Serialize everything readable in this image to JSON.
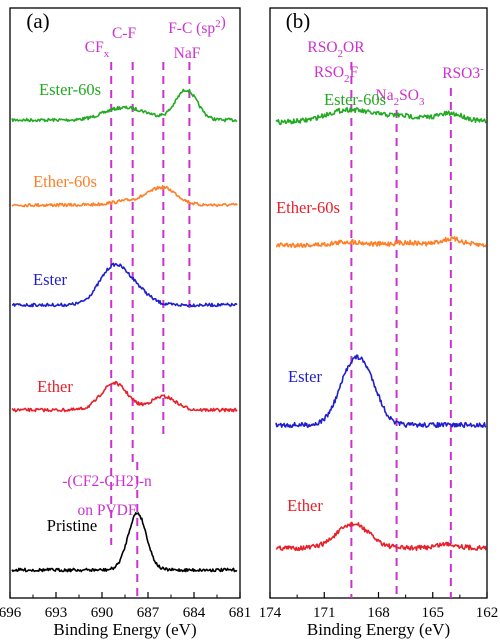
{
  "chart_data": [
    {
      "type": "line",
      "panel_label": "(a)",
      "xlabel": "Binding Energy (eV)",
      "xlim": [
        696,
        681
      ],
      "x_ticks": [
        696,
        693,
        690,
        687,
        684,
        681
      ],
      "reference_lines": [
        {
          "label": "CF",
          "sub": "x",
          "x": 689.4
        },
        {
          "label": "C-F",
          "x": 688.0
        },
        {
          "label": "F-C (sp",
          "sup": "2",
          "tail": ")",
          "x": 686.0
        },
        {
          "label": "NaF",
          "x": 684.3
        },
        {
          "label": "-(CF2-CH2)-n",
          "label2": "on PVDF",
          "x": 687.7
        }
      ],
      "series": [
        {
          "name": "Ester-60s",
          "color": "#22aa22",
          "baseline": 0,
          "peaks": [
            {
              "x": 689.3,
              "amp": 0.2,
              "w": 1.0
            },
            {
              "x": 687.9,
              "amp": 0.3,
              "w": 1.2
            },
            {
              "x": 684.5,
              "amp": 1.0,
              "w": 0.7
            }
          ]
        },
        {
          "name": "Ether-60s",
          "color": "#ff7f27",
          "baseline": 0,
          "peaks": [
            {
              "x": 688.0,
              "amp": 0.15,
              "w": 1.2
            },
            {
              "x": 686.0,
              "amp": 0.55,
              "w": 0.9
            }
          ]
        },
        {
          "name": "Ester",
          "color": "#1f1fcc",
          "baseline": 0,
          "peaks": [
            {
              "x": 689.2,
              "amp": 1.3,
              "w": 0.95
            },
            {
              "x": 687.6,
              "amp": 0.35,
              "w": 0.8
            }
          ]
        },
        {
          "name": "Ether",
          "color": "#e8202a",
          "baseline": 0,
          "peaks": [
            {
              "x": 689.2,
              "amp": 0.9,
              "w": 0.85
            },
            {
              "x": 686.0,
              "amp": 0.45,
              "w": 0.8
            }
          ]
        },
        {
          "name": "Pristine",
          "color": "#000000",
          "baseline": 0,
          "peaks": [
            {
              "x": 687.7,
              "amp": 1.9,
              "w": 0.6
            }
          ]
        }
      ]
    },
    {
      "type": "line",
      "panel_label": "(b)",
      "xlabel": "Binding Energy (eV)",
      "xlim": [
        174,
        162
      ],
      "x_ticks": [
        174,
        171,
        168,
        165,
        162
      ],
      "reference_lines": [
        {
          "label": "RSO",
          "sub": "2",
          "tail": "OR",
          "label2": "RSO",
          "sub2": "2",
          "tail2": "F",
          "x": 169.5
        },
        {
          "label": "Na",
          "sub": "2",
          "tail": "SO",
          "sub_tail": "3",
          "x": 167.0
        },
        {
          "label": "RSO3",
          "sup": "-",
          "x": 164.0
        }
      ],
      "series": [
        {
          "name": "Ester-60s",
          "color": "#22aa22",
          "baseline": 0,
          "peaks": [
            {
              "x": 169.7,
              "amp": 0.3,
              "w": 1.2
            },
            {
              "x": 166.8,
              "amp": 0.15,
              "w": 1.2
            },
            {
              "x": 164.0,
              "amp": 0.2,
              "w": 0.8
            }
          ]
        },
        {
          "name": "Ether-60s",
          "color": "#e8202a",
          "line_color": "#ff7f27",
          "baseline": 0,
          "peaks": [
            {
              "x": 169.6,
              "amp": 0.08,
              "w": 0.8
            },
            {
              "x": 166.5,
              "amp": 0.06,
              "w": 0.8
            },
            {
              "x": 164.0,
              "amp": 0.15,
              "w": 0.6
            }
          ]
        },
        {
          "name": "Ester",
          "color": "#1f1fcc",
          "baseline": 0,
          "peaks": [
            {
              "x": 169.4,
              "amp": 1.5,
              "w": 0.75
            },
            {
              "x": 168.4,
              "amp": 0.6,
              "w": 0.6
            }
          ]
        },
        {
          "name": "Ether",
          "color": "#e8202a",
          "baseline": 0,
          "peaks": [
            {
              "x": 169.4,
              "amp": 0.6,
              "w": 0.9
            },
            {
              "x": 164.2,
              "amp": 0.1,
              "w": 0.6
            }
          ]
        }
      ]
    }
  ]
}
